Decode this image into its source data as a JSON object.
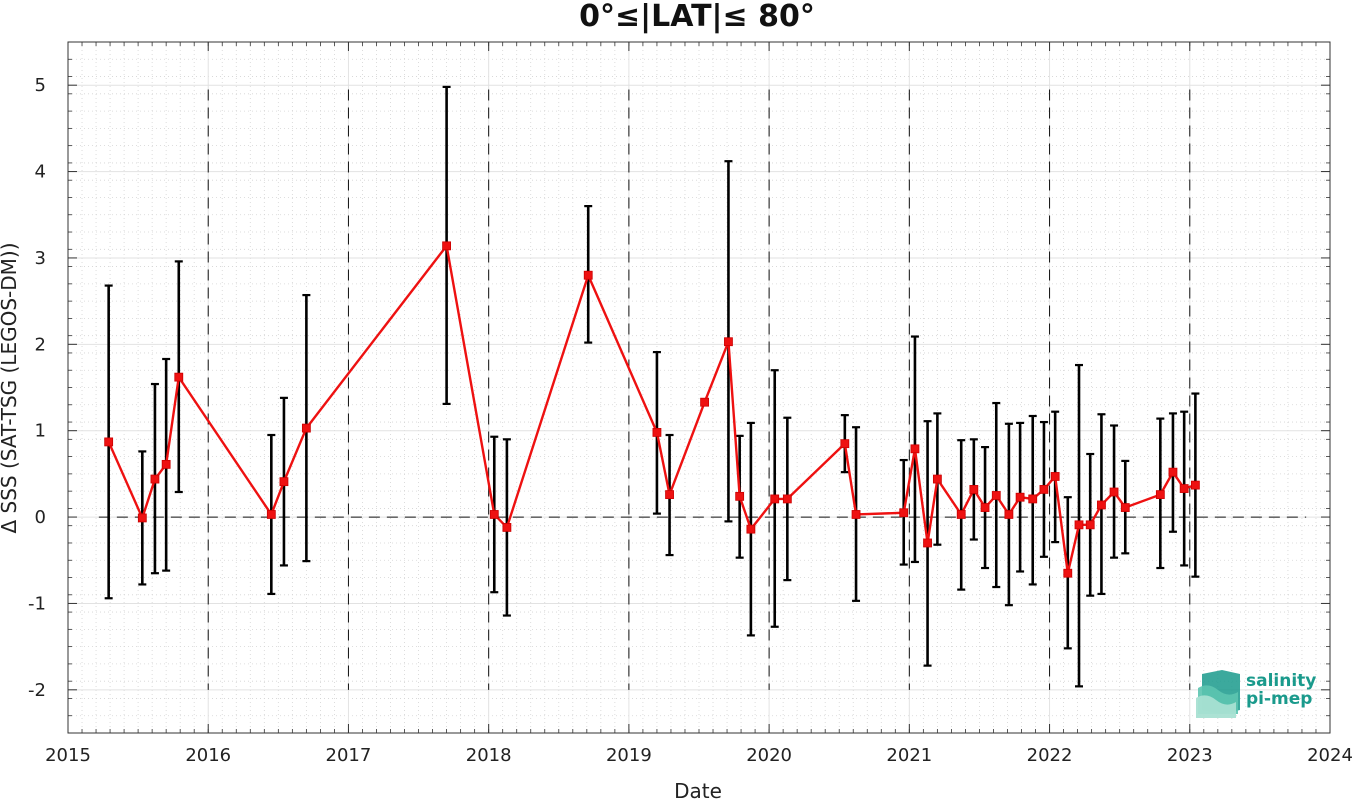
{
  "chart_data": {
    "type": "line",
    "title": "0°≤|LAT|≤ 80°",
    "xlabel": "Date",
    "ylabel": "Δ SSS (SAT-TSG (LEGOS-DM))",
    "xlim": [
      2015,
      2024
    ],
    "ylim": [
      -2.5,
      5.5
    ],
    "x_ticks": [
      2015,
      2016,
      2017,
      2018,
      2019,
      2020,
      2021,
      2022,
      2023,
      2024
    ],
    "x_tick_labels": [
      "2015",
      "2016",
      "2017",
      "2018",
      "2019",
      "2020",
      "2021",
      "2022",
      "2023",
      "2024"
    ],
    "y_ticks": [
      -2,
      -1,
      0,
      1,
      2,
      3,
      4,
      5
    ],
    "y_tick_labels": [
      "-2",
      "-1",
      "0",
      "1",
      "2",
      "3",
      "4",
      "5"
    ],
    "grid": true,
    "year_separators": [
      2016,
      2017,
      2018,
      2019,
      2020,
      2021,
      2022,
      2023
    ],
    "zero_line": 0,
    "series": [
      {
        "color": "#ee1111",
        "error_color": "#000000",
        "x": [
          2015.29,
          2015.53,
          2015.62,
          2015.7,
          2015.79,
          2016.45,
          2016.54,
          2016.7,
          2017.7,
          2018.04,
          2018.13,
          2018.71,
          2019.2,
          2019.29,
          2019.54,
          2019.71,
          2019.79,
          2019.87,
          2020.04,
          2020.13,
          2020.54,
          2020.62,
          2020.96,
          2021.04,
          2021.13,
          2021.2,
          2021.37,
          2021.46,
          2021.54,
          2021.62,
          2021.71,
          2021.79,
          2021.88,
          2021.96,
          2022.04,
          2022.13,
          2022.21,
          2022.29,
          2022.37,
          2022.46,
          2022.54,
          2022.79,
          2022.88,
          2022.96,
          2023.04
        ],
        "y": [
          0.87,
          -0.01,
          0.44,
          0.61,
          1.62,
          0.03,
          0.41,
          1.03,
          3.14,
          0.03,
          -0.12,
          2.8,
          0.98,
          0.26,
          1.33,
          2.03,
          0.24,
          -0.14,
          0.21,
          0.21,
          0.85,
          0.03,
          0.05,
          0.79,
          -0.3,
          0.44,
          0.03,
          0.32,
          0.11,
          0.25,
          0.03,
          0.23,
          0.21,
          0.32,
          0.47,
          -0.65,
          -0.09,
          -0.09,
          0.14,
          0.29,
          0.11,
          0.26,
          0.52,
          0.33,
          0.37
        ],
        "err_low": [
          -0.94,
          -0.78,
          -0.65,
          -0.62,
          0.29,
          -0.89,
          -0.56,
          -0.51,
          1.31,
          -0.87,
          -1.14,
          2.02,
          0.04,
          -0.44,
          1.33,
          -0.05,
          -0.47,
          -1.37,
          -1.27,
          -0.73,
          0.52,
          -0.97,
          -0.55,
          -0.52,
          -1.72,
          -0.32,
          -0.84,
          -0.26,
          -0.59,
          -0.81,
          -1.02,
          -0.63,
          -0.78,
          -0.46,
          -0.29,
          -1.52,
          -1.96,
          -0.91,
          -0.89,
          -0.47,
          -0.42,
          -0.59,
          -0.17,
          -0.56,
          -0.69
        ],
        "err_high": [
          2.68,
          0.76,
          1.54,
          1.83,
          2.96,
          0.95,
          1.38,
          2.57,
          4.98,
          0.93,
          0.9,
          3.6,
          1.91,
          0.95,
          1.33,
          4.12,
          0.94,
          1.09,
          1.7,
          1.15,
          1.18,
          1.04,
          0.66,
          2.09,
          1.11,
          1.2,
          0.89,
          0.9,
          0.81,
          1.32,
          1.08,
          1.09,
          1.17,
          1.1,
          1.22,
          0.23,
          1.76,
          0.73,
          1.19,
          1.06,
          0.65,
          1.14,
          1.2,
          1.22,
          1.43
        ]
      }
    ]
  },
  "logo": {
    "line1": "salinity",
    "line2": "pi-mep"
  }
}
